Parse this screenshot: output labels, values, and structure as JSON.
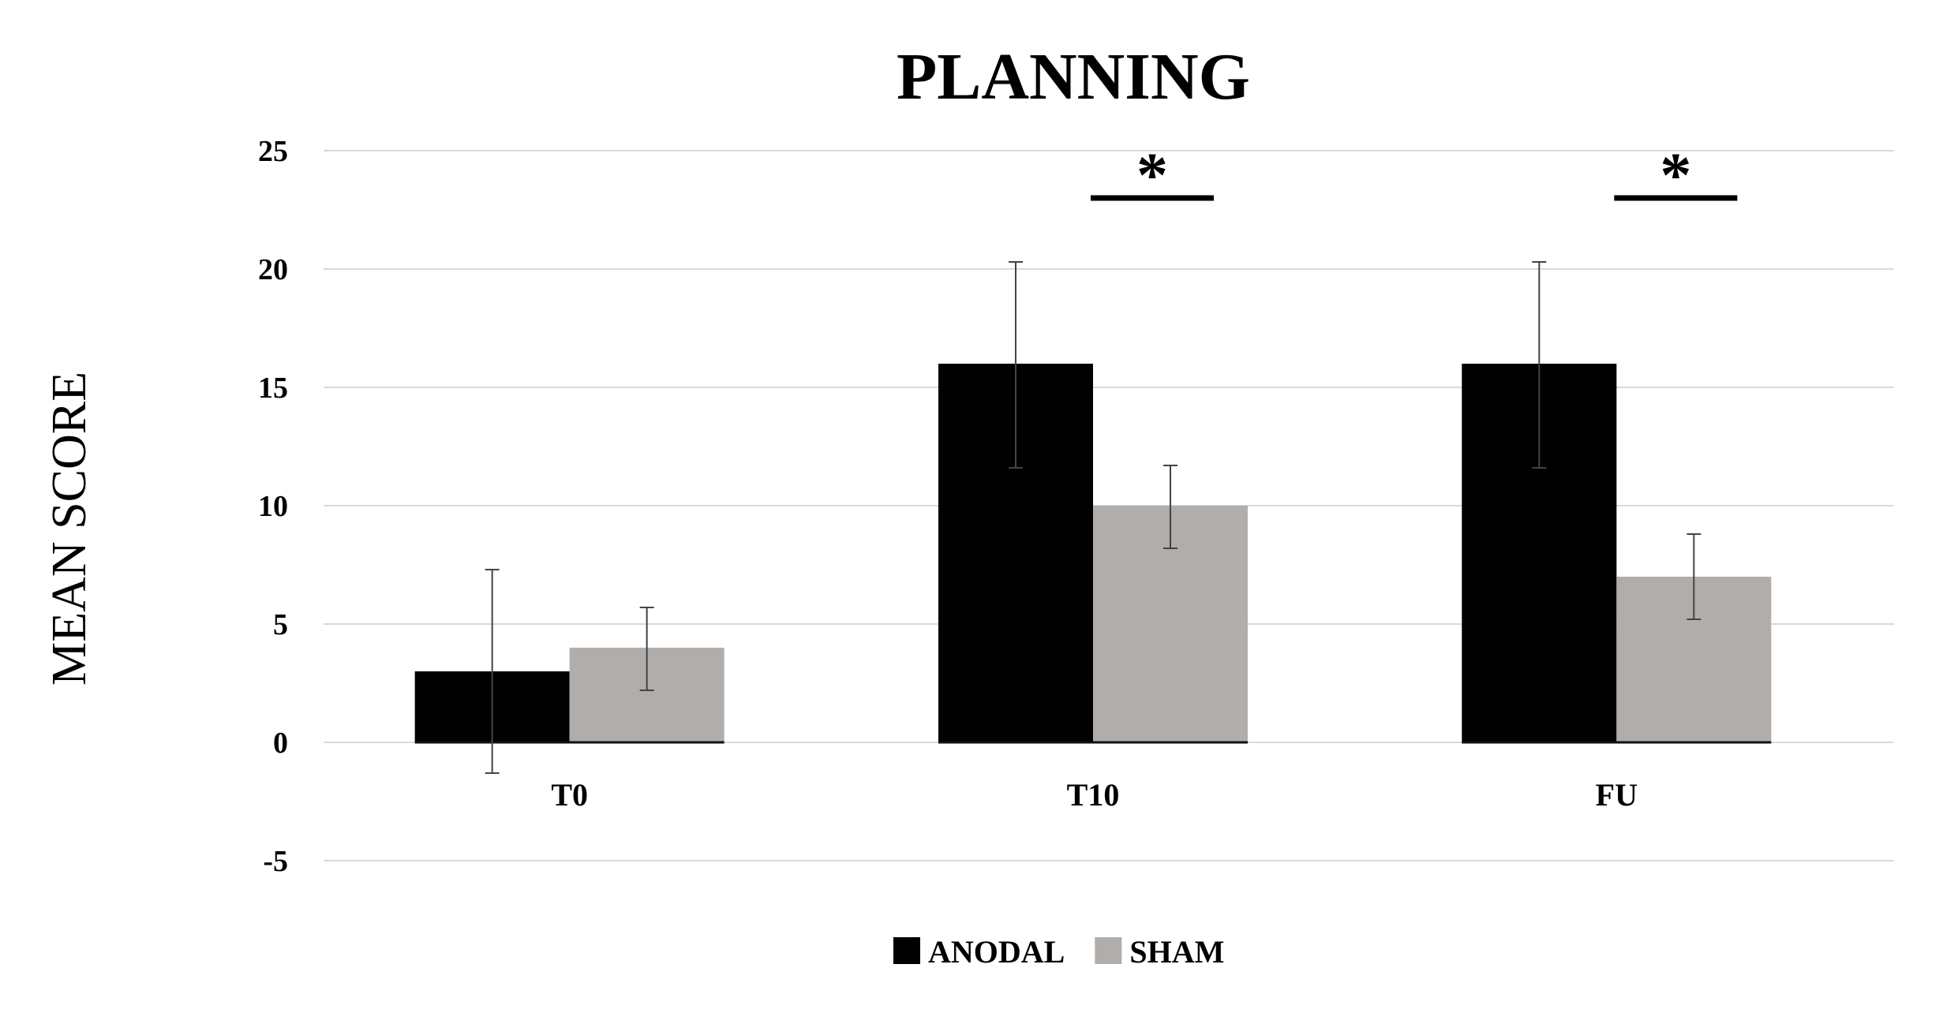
{
  "chart_data": {
    "type": "bar",
    "title": "PLANNING",
    "ylabel": "MEAN SCORE",
    "xlabel": "",
    "categories": [
      "T0",
      "T10",
      "FU"
    ],
    "ylim": [
      -5,
      25
    ],
    "yticks": [
      -5,
      0,
      5,
      10,
      15,
      20,
      25
    ],
    "grid": true,
    "legend_position": "bottom-center",
    "series": [
      {
        "name": "ANODAL",
        "color": "#000000",
        "values": [
          3,
          16,
          16
        ],
        "error_low": [
          -1.3,
          11.6,
          11.6
        ],
        "error_high": [
          7.3,
          20.3,
          20.3
        ]
      },
      {
        "name": "SHAM",
        "color": "#b0adab",
        "values": [
          4,
          10,
          7
        ],
        "error_low": [
          2.2,
          8.2,
          5.2
        ],
        "error_high": [
          5.7,
          11.7,
          8.8
        ]
      }
    ],
    "significance": [
      {
        "category": "T10",
        "label": "*"
      },
      {
        "category": "FU",
        "label": "*"
      }
    ]
  }
}
